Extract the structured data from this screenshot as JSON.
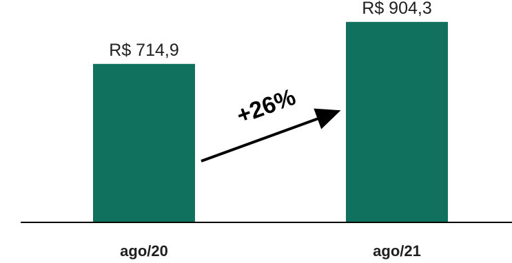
{
  "chart_data": {
    "type": "bar",
    "categories": [
      "ago/20",
      "ago/21"
    ],
    "values": [
      714.9,
      904.3
    ],
    "value_labels": [
      "R$ 714,9",
      "R$ 904,3"
    ],
    "title": "",
    "xlabel": "",
    "ylabel": "",
    "ylim": [
      0,
      1000
    ],
    "grid": false,
    "legend": "none",
    "annotation": "+26%",
    "bar_color": "#11715f",
    "axis_color": "#000000"
  }
}
